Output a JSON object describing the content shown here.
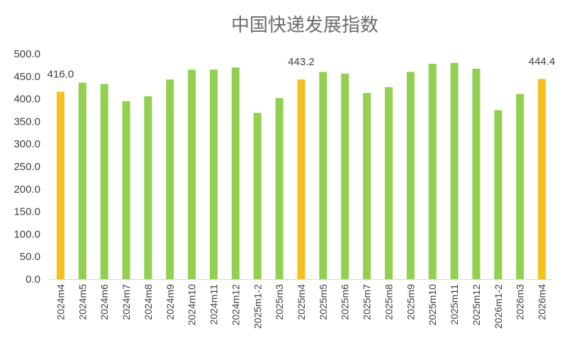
{
  "chart_data": {
    "type": "bar",
    "title": "中国快递发展指数",
    "xlabel": "",
    "ylabel": "",
    "ylim": [
      0,
      500
    ],
    "yticks": [
      "0.0",
      "50.0",
      "100.0",
      "150.0",
      "200.0",
      "250.0",
      "300.0",
      "350.0",
      "400.0",
      "450.0",
      "500.0"
    ],
    "categories": [
      "2024m4",
      "2024m5",
      "2024m6",
      "2024m7",
      "2024m8",
      "2024m9",
      "2024m10",
      "2024m11",
      "2024m12",
      "2025m1-2",
      "2025m3",
      "2025m4",
      "2025m5",
      "2025m6",
      "2025m7",
      "2025m8",
      "2025m9",
      "2025m10",
      "2025m11",
      "2025m12",
      "2026m1-2",
      "2026m3",
      "2026m4"
    ],
    "values": [
      416.0,
      436,
      433,
      395,
      406,
      443,
      465,
      465,
      470,
      369,
      402,
      443.2,
      460,
      456,
      413,
      426,
      460,
      478,
      480,
      467,
      375,
      411,
      444.4
    ],
    "highlight_indices": [
      0,
      11,
      22
    ],
    "data_labels": [
      {
        "index": 0,
        "text": "416.0"
      },
      {
        "index": 11,
        "text": "443.2"
      },
      {
        "index": 22,
        "text": "444.4"
      }
    ],
    "colors": {
      "default": "#92d050",
      "highlight": "#f5c11f"
    },
    "grid": false,
    "legend": "none"
  }
}
